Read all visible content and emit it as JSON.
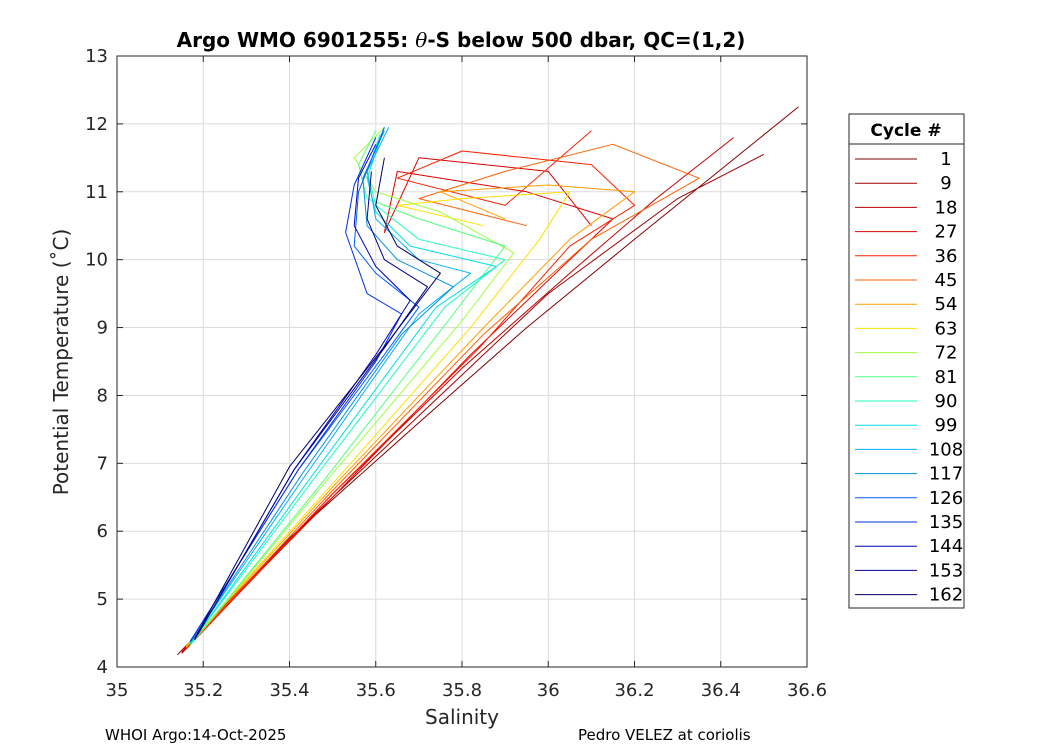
{
  "chart_data": {
    "type": "line",
    "title_pre": "Argo WMO 6901255: ",
    "title_theta": "θ",
    "title_post": "-S below 500 dbar,  QC=(1,2)",
    "xlabel": "Salinity",
    "ylabel": "Potential Temperature (˚C)",
    "xlim": [
      35,
      36.6
    ],
    "ylim": [
      4,
      13
    ],
    "xticks": [
      "35",
      "35.2",
      "35.4",
      "35.6",
      "35.8",
      "36",
      "36.2",
      "36.4",
      "36.6"
    ],
    "yticks": [
      "4",
      "5",
      "6",
      "7",
      "8",
      "9",
      "10",
      "11",
      "12",
      "13"
    ],
    "grid": true,
    "legend_title": "Cycle #",
    "legend_position": "outside-right",
    "series": [
      {
        "name": "1",
        "color": "#800000",
        "values": [
          [
            35.14,
            4.18
          ],
          [
            35.4,
            5.9
          ],
          [
            35.7,
            7.6
          ],
          [
            35.95,
            9.0
          ],
          [
            36.2,
            10.3
          ],
          [
            36.58,
            12.25
          ]
        ]
      },
      {
        "name": "9",
        "color": "#a00000",
        "values": [
          [
            35.15,
            4.2
          ],
          [
            35.45,
            6.2
          ],
          [
            35.75,
            8.0
          ],
          [
            36.0,
            9.5
          ],
          [
            36.3,
            10.9
          ],
          [
            36.5,
            11.55
          ]
        ]
      },
      {
        "name": "18",
        "color": "#c00000",
        "values": [
          [
            35.15,
            4.22
          ],
          [
            35.5,
            6.55
          ],
          [
            35.8,
            8.4
          ],
          [
            36.05,
            9.8
          ],
          [
            36.25,
            10.9
          ],
          [
            36.43,
            11.8
          ]
        ]
      },
      {
        "name": "27",
        "color": "#e00000",
        "values": [
          [
            35.15,
            4.24
          ],
          [
            35.5,
            6.5
          ],
          [
            35.82,
            8.6
          ],
          [
            36.05,
            10.0
          ],
          [
            36.15,
            10.6
          ],
          [
            35.95,
            11.0
          ],
          [
            35.65,
            11.3
          ],
          [
            35.62,
            10.4
          ],
          [
            35.7,
            11.5
          ],
          [
            36.0,
            11.3
          ],
          [
            36.1,
            10.5
          ]
        ]
      },
      {
        "name": "36",
        "color": "#ff2000",
        "values": [
          [
            35.16,
            4.26
          ],
          [
            35.5,
            6.55
          ],
          [
            35.84,
            8.7
          ],
          [
            36.05,
            10.2
          ],
          [
            36.2,
            10.8
          ],
          [
            36.1,
            11.4
          ],
          [
            35.8,
            11.6
          ],
          [
            35.65,
            11.2
          ],
          [
            35.9,
            10.8
          ],
          [
            36.1,
            11.9
          ]
        ]
      },
      {
        "name": "45",
        "color": "#ff6000",
        "values": [
          [
            35.16,
            4.28
          ],
          [
            35.5,
            6.6
          ],
          [
            35.85,
            8.9
          ],
          [
            36.1,
            10.3
          ],
          [
            36.35,
            11.2
          ],
          [
            36.15,
            11.7
          ],
          [
            35.9,
            11.3
          ],
          [
            35.7,
            10.9
          ],
          [
            35.95,
            10.5
          ]
        ]
      },
      {
        "name": "54",
        "color": "#ffa000",
        "values": [
          [
            35.16,
            4.3
          ],
          [
            35.5,
            6.65
          ],
          [
            35.85,
            9.0
          ],
          [
            36.05,
            10.3
          ],
          [
            36.2,
            11.0
          ],
          [
            36.0,
            11.1
          ],
          [
            35.75,
            11.0
          ],
          [
            35.9,
            10.6
          ]
        ]
      },
      {
        "name": "63",
        "color": "#ffe000",
        "values": [
          [
            35.16,
            4.3
          ],
          [
            35.5,
            6.7
          ],
          [
            35.82,
            9.0
          ],
          [
            35.98,
            10.3
          ],
          [
            36.05,
            11.0
          ],
          [
            35.8,
            10.9
          ],
          [
            35.65,
            10.8
          ],
          [
            35.85,
            10.5
          ]
        ]
      },
      {
        "name": "72",
        "color": "#a0ff40",
        "values": [
          [
            35.17,
            4.32
          ],
          [
            35.48,
            6.7
          ],
          [
            35.8,
            9.1
          ],
          [
            35.92,
            10.1
          ],
          [
            35.75,
            10.7
          ],
          [
            35.6,
            11.0
          ],
          [
            35.55,
            11.5
          ],
          [
            35.62,
            11.95
          ]
        ]
      },
      {
        "name": "81",
        "color": "#50ff80",
        "values": [
          [
            35.17,
            4.32
          ],
          [
            35.48,
            6.75
          ],
          [
            35.78,
            9.2
          ],
          [
            35.9,
            10.2
          ],
          [
            35.7,
            10.6
          ],
          [
            35.58,
            10.9
          ],
          [
            35.56,
            11.4
          ],
          [
            35.6,
            11.9
          ]
        ]
      },
      {
        "name": "90",
        "color": "#20ffc0",
        "values": [
          [
            35.17,
            4.34
          ],
          [
            35.46,
            6.8
          ],
          [
            35.76,
            9.3
          ],
          [
            35.9,
            10.0
          ],
          [
            35.7,
            10.3
          ],
          [
            35.6,
            10.8
          ],
          [
            35.58,
            11.3
          ],
          [
            35.61,
            11.85
          ]
        ]
      },
      {
        "name": "99",
        "color": "#00e0e8",
        "values": [
          [
            35.17,
            4.34
          ],
          [
            35.45,
            6.8
          ],
          [
            35.74,
            9.3
          ],
          [
            35.88,
            9.9
          ],
          [
            35.68,
            10.2
          ],
          [
            35.6,
            10.7
          ],
          [
            35.58,
            11.2
          ],
          [
            35.62,
            11.95
          ]
        ]
      },
      {
        "name": "108",
        "color": "#00b0ff",
        "values": [
          [
            35.17,
            4.36
          ],
          [
            35.44,
            6.85
          ],
          [
            35.7,
            9.2
          ],
          [
            35.82,
            9.8
          ],
          [
            35.7,
            10.0
          ],
          [
            35.6,
            10.6
          ],
          [
            35.58,
            11.3
          ],
          [
            35.63,
            11.95
          ]
        ]
      },
      {
        "name": "117",
        "color": "#0090e0",
        "values": [
          [
            35.17,
            4.36
          ],
          [
            35.43,
            6.85
          ],
          [
            35.66,
            8.9
          ],
          [
            35.78,
            9.6
          ],
          [
            35.65,
            10.0
          ],
          [
            35.58,
            10.5
          ],
          [
            35.57,
            11.2
          ],
          [
            35.62,
            11.9
          ]
        ]
      },
      {
        "name": "126",
        "color": "#0060ff",
        "values": [
          [
            35.17,
            4.38
          ],
          [
            35.42,
            6.9
          ],
          [
            35.62,
            8.6
          ],
          [
            35.7,
            9.3
          ],
          [
            35.6,
            9.8
          ],
          [
            35.55,
            10.2
          ],
          [
            35.56,
            11.0
          ],
          [
            35.62,
            11.95
          ]
        ]
      },
      {
        "name": "135",
        "color": "#0030e0",
        "values": [
          [
            35.17,
            4.38
          ],
          [
            35.42,
            6.9
          ],
          [
            35.6,
            8.5
          ],
          [
            35.66,
            9.2
          ],
          [
            35.58,
            9.5
          ],
          [
            35.53,
            10.4
          ],
          [
            35.55,
            11.1
          ],
          [
            35.6,
            11.8
          ]
        ]
      },
      {
        "name": "144",
        "color": "#0000c0",
        "values": [
          [
            35.18,
            4.4
          ],
          [
            35.41,
            6.9
          ],
          [
            35.6,
            8.6
          ],
          [
            35.68,
            9.4
          ],
          [
            35.6,
            9.9
          ],
          [
            35.55,
            10.5
          ],
          [
            35.56,
            11.2
          ],
          [
            35.6,
            11.7
          ]
        ]
      },
      {
        "name": "153",
        "color": "#000090",
        "values": [
          [
            35.18,
            4.4
          ],
          [
            35.41,
            6.9
          ],
          [
            35.62,
            8.7
          ],
          [
            35.72,
            9.6
          ],
          [
            35.62,
            10.0
          ],
          [
            35.58,
            10.6
          ],
          [
            35.59,
            11.3
          ]
        ]
      },
      {
        "name": "162",
        "color": "#000060",
        "values": [
          [
            35.18,
            4.42
          ],
          [
            35.4,
            6.95
          ],
          [
            35.63,
            8.8
          ],
          [
            35.75,
            9.8
          ],
          [
            35.65,
            10.2
          ],
          [
            35.6,
            10.8
          ],
          [
            35.62,
            11.5
          ]
        ]
      }
    ]
  },
  "footer": {
    "left": "WHOI Argo:14-Oct-2025",
    "right": "Pedro VELEZ at coriolis"
  }
}
